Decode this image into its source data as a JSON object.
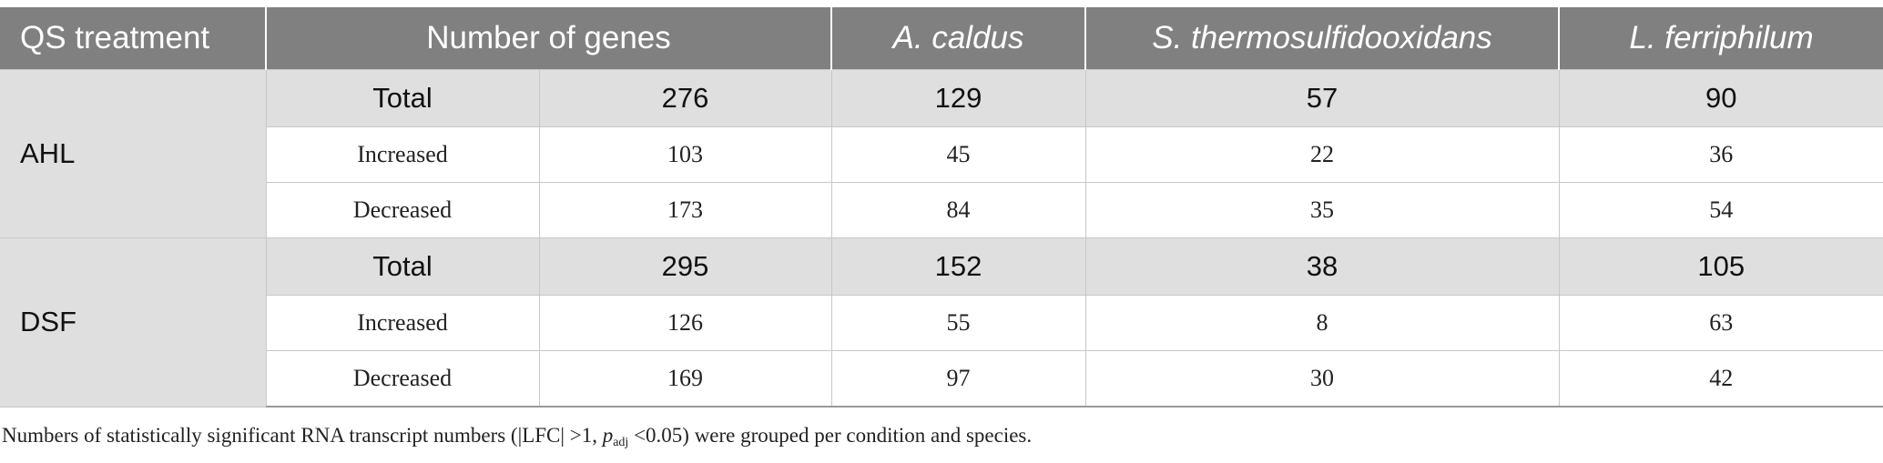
{
  "table": {
    "headers": [
      {
        "label": "QS treatment",
        "italic": false
      },
      {
        "label": "Number of genes",
        "italic": false
      },
      {
        "label": "A. caldus",
        "italic": true
      },
      {
        "label": "S. thermosulfidooxidans",
        "italic": true
      },
      {
        "label": "L. ferriphilum",
        "italic": true
      }
    ],
    "groups": [
      {
        "name": "AHL",
        "rows": [
          {
            "type": "Total",
            "number_of_genes": "276",
            "a_caldus": "129",
            "s_thermosulfidooxidans": "57",
            "l_ferriphilum": "90"
          },
          {
            "type": "Increased",
            "number_of_genes": "103",
            "a_caldus": "45",
            "s_thermosulfidooxidans": "22",
            "l_ferriphilum": "36"
          },
          {
            "type": "Decreased",
            "number_of_genes": "173",
            "a_caldus": "84",
            "s_thermosulfidooxidans": "35",
            "l_ferriphilum": "54"
          }
        ]
      },
      {
        "name": "DSF",
        "rows": [
          {
            "type": "Total",
            "number_of_genes": "295",
            "a_caldus": "152",
            "s_thermosulfidooxidans": "38",
            "l_ferriphilum": "105"
          },
          {
            "type": "Increased",
            "number_of_genes": "126",
            "a_caldus": "55",
            "s_thermosulfidooxidans": "8",
            "l_ferriphilum": "63"
          },
          {
            "type": "Decreased",
            "number_of_genes": "169",
            "a_caldus": "97",
            "s_thermosulfidooxidans": "30",
            "l_ferriphilum": "42"
          }
        ]
      }
    ]
  },
  "footnote": {
    "before": "Numbers of statistically significant RNA transcript numbers (|LFC| >1, ",
    "p": "p",
    "sub": "adj",
    "after": " <0.05) were grouped per condition and species."
  },
  "colors": {
    "header_bg": "#7f807f",
    "total_row_bg": "#e0dfe0",
    "grid_line": "#c8c8c8"
  }
}
